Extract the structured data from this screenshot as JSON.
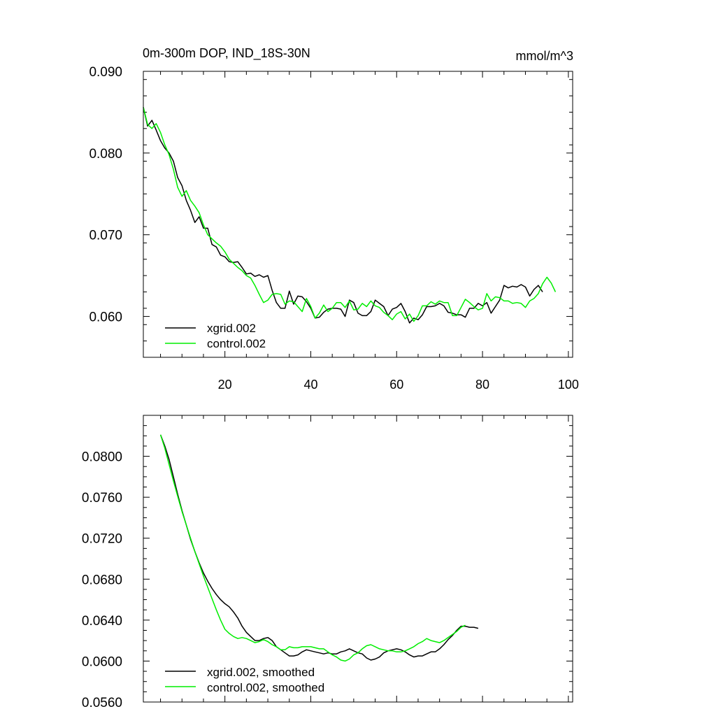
{
  "colors": {
    "xgrid": "#000000",
    "control": "#00ee00"
  },
  "chart_data": [
    {
      "type": "line",
      "title": "0m-300m DOP, IND_18S-30N",
      "units": "mmol/m^3",
      "xlim": [
        1,
        101
      ],
      "ylim": [
        0.055,
        0.09
      ],
      "x_ticks": [
        20,
        40,
        60,
        80,
        100
      ],
      "x_tick_labels": [
        "20",
        "40",
        "60",
        "80",
        "100"
      ],
      "y_ticks": [
        0.06,
        0.07,
        0.08,
        0.09
      ],
      "y_tick_labels": [
        "0.060",
        "0.070",
        "0.080",
        "0.090"
      ],
      "legend_position": "bottom-left",
      "series": [
        {
          "name": "xgrid.002",
          "color_key": "xgrid",
          "x_start": 1,
          "values": [
            0.0856,
            0.0833,
            0.084,
            0.0828,
            0.0815,
            0.0806,
            0.08,
            0.079,
            0.077,
            0.076,
            0.0742,
            0.073,
            0.0715,
            0.0722,
            0.0708,
            0.0708,
            0.0688,
            0.0685,
            0.0675,
            0.0673,
            0.0667,
            0.0666,
            0.0667,
            0.066,
            0.0652,
            0.0653,
            0.0649,
            0.0651,
            0.0648,
            0.065,
            0.0632,
            0.0617,
            0.061,
            0.061,
            0.0631,
            0.0615,
            0.0625,
            0.0624,
            0.0618,
            0.061,
            0.0598,
            0.0599,
            0.0605,
            0.0609,
            0.061,
            0.061,
            0.0609,
            0.06,
            0.062,
            0.0617,
            0.0604,
            0.0601,
            0.0601,
            0.0606,
            0.062,
            0.0616,
            0.0612,
            0.0601,
            0.0609,
            0.0611,
            0.0616,
            0.0606,
            0.0592,
            0.0598,
            0.0596,
            0.0602,
            0.0612,
            0.0612,
            0.0613,
            0.0616,
            0.0613,
            0.0605,
            0.0604,
            0.0602,
            0.0602,
            0.0599,
            0.061,
            0.061,
            0.0616,
            0.0613,
            0.0617,
            0.0604,
            0.0612,
            0.062,
            0.0638,
            0.0635,
            0.0637,
            0.0636,
            0.0639,
            0.0636,
            0.0625,
            0.0633,
            0.0638,
            0.063
          ]
        },
        {
          "name": "control.002",
          "color_key": "control",
          "x_start": 1,
          "values": [
            0.0856,
            0.0835,
            0.083,
            0.0836,
            0.0825,
            0.081,
            0.0798,
            0.078,
            0.0758,
            0.0747,
            0.0754,
            0.0742,
            0.0735,
            0.0727,
            0.0712,
            0.07,
            0.0695,
            0.069,
            0.0686,
            0.0679,
            0.067,
            0.0665,
            0.066,
            0.0656,
            0.065,
            0.0647,
            0.0638,
            0.0627,
            0.0617,
            0.062,
            0.0627,
            0.0628,
            0.0627,
            0.0615,
            0.0619,
            0.0618,
            0.0612,
            0.0606,
            0.0622,
            0.0612,
            0.0598,
            0.0604,
            0.0614,
            0.0606,
            0.061,
            0.0617,
            0.0617,
            0.0611,
            0.0619,
            0.0608,
            0.0609,
            0.0616,
            0.0612,
            0.0619,
            0.0613,
            0.0611,
            0.0605,
            0.0601,
            0.0596,
            0.0603,
            0.0606,
            0.0597,
            0.0603,
            0.0594,
            0.0601,
            0.0613,
            0.0613,
            0.0618,
            0.0615,
            0.0619,
            0.0617,
            0.0617,
            0.0601,
            0.0601,
            0.0611,
            0.0621,
            0.0617,
            0.0612,
            0.0608,
            0.061,
            0.0628,
            0.0619,
            0.0624,
            0.0623,
            0.0619,
            0.0619,
            0.0616,
            0.0617,
            0.0616,
            0.0611,
            0.0619,
            0.0622,
            0.0628,
            0.064,
            0.0648,
            0.0641,
            0.063
          ]
        }
      ]
    },
    {
      "type": "line",
      "title": "",
      "xlim": [
        1,
        101
      ],
      "ylim": [
        0.056,
        0.084
      ],
      "x_ticks": [
        20,
        40,
        60,
        80,
        100
      ],
      "x_tick_labels": [],
      "y_ticks": [
        0.056,
        0.06,
        0.064,
        0.068,
        0.072,
        0.076,
        0.08
      ],
      "y_tick_labels": [
        "0.0560",
        "0.0600",
        "0.0640",
        "0.0680",
        "0.0720",
        "0.0760",
        "0.0800"
      ],
      "legend_position": "bottom-left",
      "series": [
        {
          "name": "xgrid.002, smoothed",
          "color_key": "xgrid",
          "x_start": 5,
          "values": [
            0.0821,
            0.081,
            0.0797,
            0.078,
            0.0763,
            0.0747,
            0.0733,
            0.0719,
            0.0707,
            0.0696,
            0.0686,
            0.0678,
            0.0671,
            0.0665,
            0.066,
            0.0656,
            0.0653,
            0.0648,
            0.0642,
            0.0634,
            0.0628,
            0.0624,
            0.062,
            0.062,
            0.0622,
            0.0623,
            0.062,
            0.0614,
            0.0611,
            0.0608,
            0.0605,
            0.0605,
            0.0606,
            0.0609,
            0.0611,
            0.061,
            0.0609,
            0.0608,
            0.0607,
            0.0608,
            0.0607,
            0.0607,
            0.0609,
            0.061,
            0.0612,
            0.061,
            0.0608,
            0.0607,
            0.0603,
            0.0601,
            0.0602,
            0.0604,
            0.0608,
            0.061,
            0.0611,
            0.0612,
            0.0611,
            0.0609,
            0.0606,
            0.0604,
            0.0605,
            0.0605,
            0.0607,
            0.0609,
            0.0609,
            0.0612,
            0.0616,
            0.0621,
            0.0625,
            0.063,
            0.0634,
            0.0634,
            0.0633,
            0.0633,
            0.0632
          ]
        },
        {
          "name": "control.002, smoothed",
          "color_key": "control",
          "x_start": 5,
          "values": [
            0.0821,
            0.0808,
            0.0792,
            0.0776,
            0.0761,
            0.0746,
            0.0733,
            0.072,
            0.0707,
            0.0695,
            0.0683,
            0.0672,
            0.0661,
            0.065,
            0.064,
            0.0631,
            0.0627,
            0.0624,
            0.0622,
            0.0623,
            0.0622,
            0.062,
            0.0618,
            0.0619,
            0.0621,
            0.0619,
            0.0616,
            0.0614,
            0.0611,
            0.0611,
            0.0614,
            0.0613,
            0.0613,
            0.0614,
            0.0614,
            0.0614,
            0.0613,
            0.0612,
            0.0612,
            0.0609,
            0.0606,
            0.0604,
            0.0601,
            0.06,
            0.0602,
            0.0606,
            0.0608,
            0.0612,
            0.0615,
            0.0616,
            0.0614,
            0.0612,
            0.0611,
            0.061,
            0.061,
            0.0609,
            0.0609,
            0.061,
            0.0612,
            0.0614,
            0.0617,
            0.0619,
            0.0622,
            0.062,
            0.0619,
            0.0618,
            0.062,
            0.0623,
            0.0626,
            0.0629,
            0.0633,
            0.0635
          ]
        }
      ]
    }
  ]
}
